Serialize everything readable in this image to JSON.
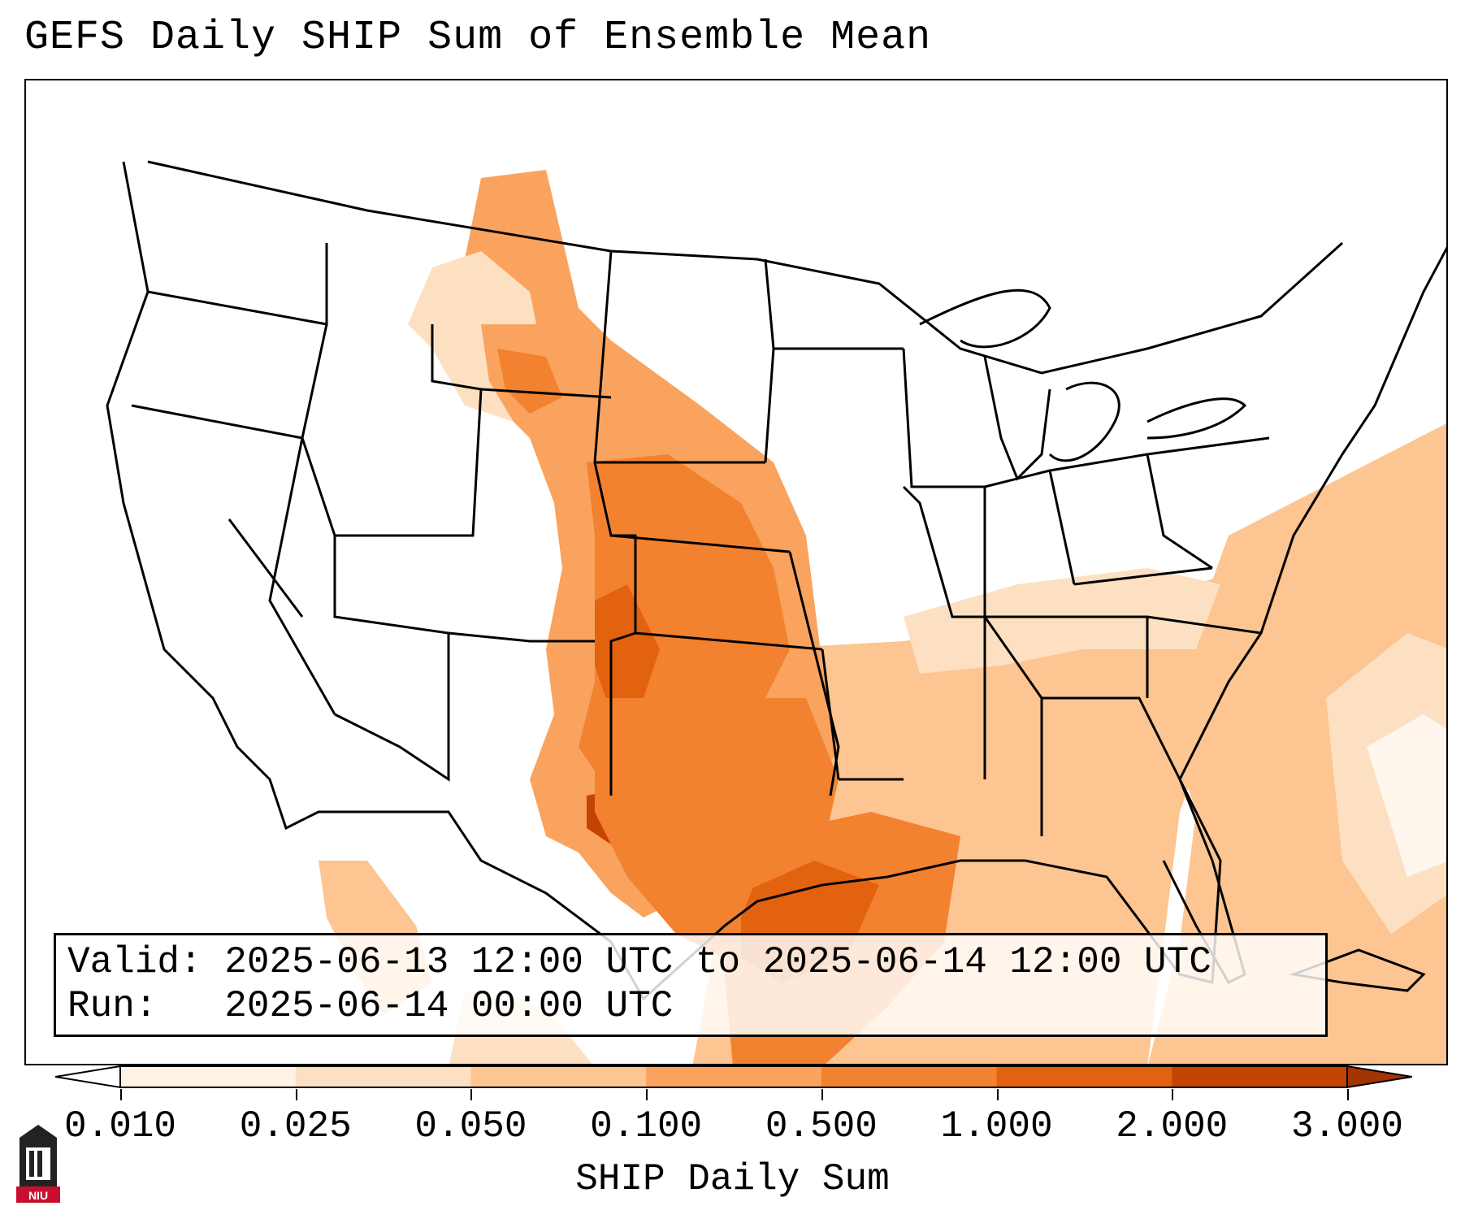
{
  "title": "GEFS Daily SHIP Sum of Ensemble Mean",
  "info": {
    "valid_label": "Valid:",
    "valid_value": "2025-06-13 12:00 UTC to 2025-06-14 12:00 UTC",
    "run_label": "Run:",
    "run_value": "2025-06-14 00:00 UTC"
  },
  "colorbar": {
    "label": "SHIP Daily Sum",
    "ticks": [
      "0.010",
      "0.025",
      "0.050",
      "0.100",
      "0.500",
      "1.000",
      "2.000",
      "3.000"
    ],
    "colors": [
      "#fff1e3",
      "#fde0c2",
      "#fcc591",
      "#f9a35e",
      "#f28230",
      "#e3620f",
      "#c44403"
    ],
    "extend": "both"
  },
  "logo": {
    "text": "NIU",
    "color": "#c8102e"
  },
  "map": {
    "region": "Continental United States",
    "projection": "Lambert Conformal"
  }
}
